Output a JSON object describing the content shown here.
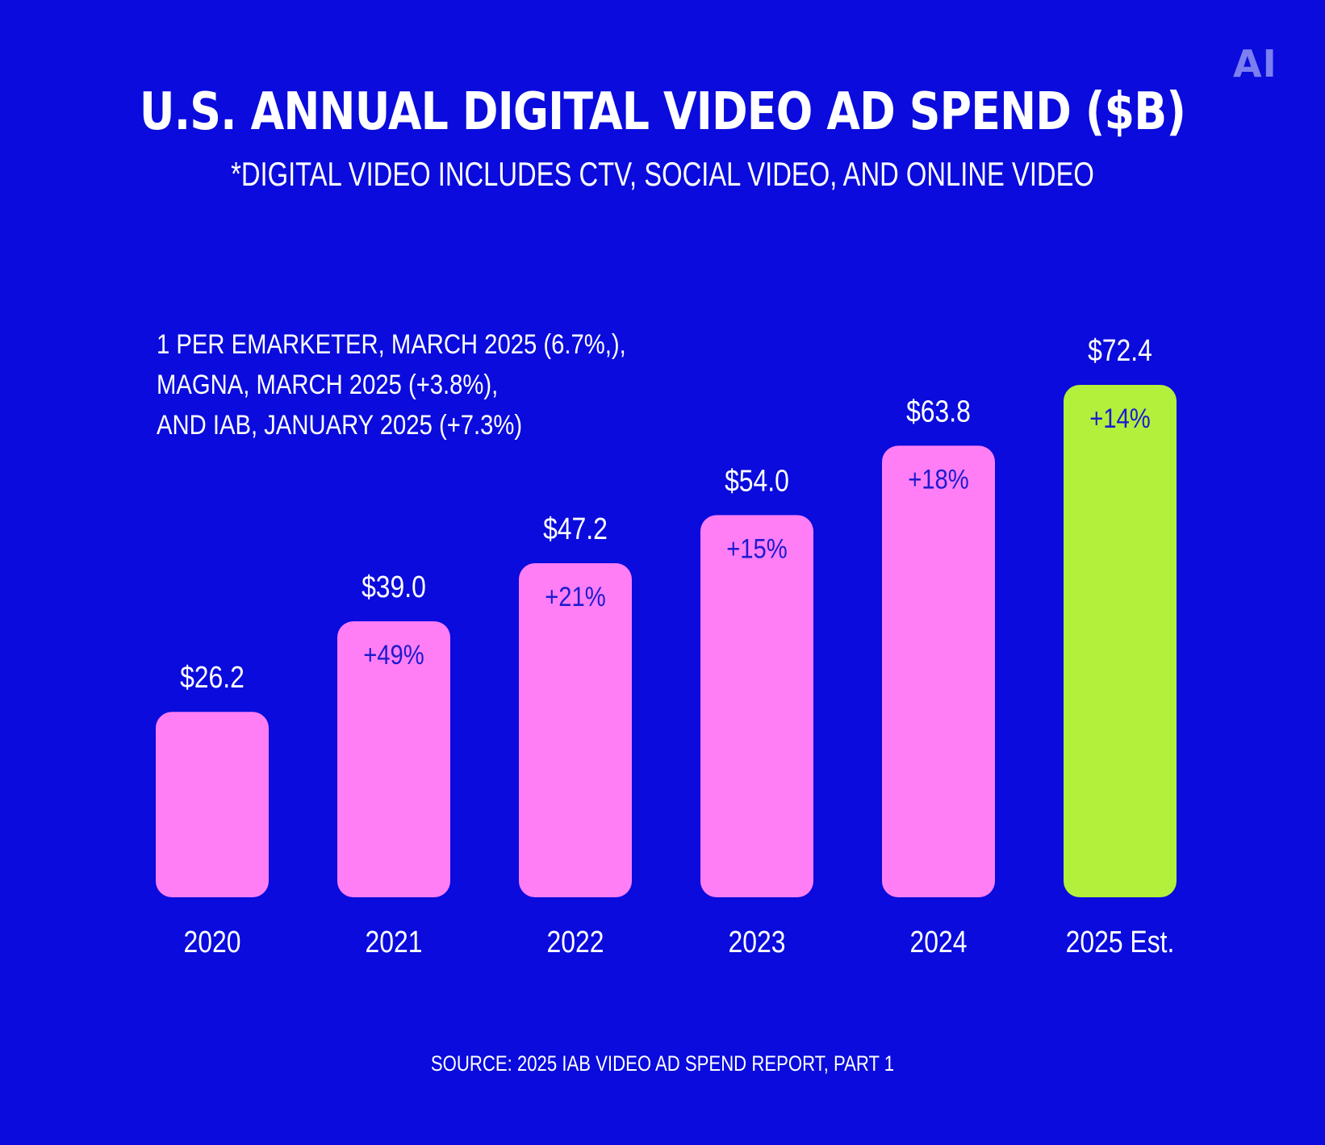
{
  "logo": {
    "text": "AI"
  },
  "header": {
    "title": "U.S. ANNUAL DIGITAL VIDEO AD SPEND ($B)",
    "subtitle": "*DIGITAL VIDEO INCLUDES CTV, SOCIAL VIDEO, AND ONLINE VIDEO"
  },
  "notes": {
    "lines": [
      "1 PER EMARKETER, MARCH 2025 (6.7%,),",
      "MAGNA, MARCH 2025 (+3.8%),",
      "AND IAB, JANUARY 2025 (+7.3%)"
    ]
  },
  "footer": {
    "source": "SOURCE: 2025 IAB VIDEO AD SPEND REPORT, PART 1"
  },
  "colors": {
    "background": "#0a0bdc",
    "bar_actual": "#ff7ef5",
    "bar_estimate": "#b2f03c",
    "growth_label": "#1d1bd0",
    "text": "#ffffff",
    "logo": "#7b7ff0"
  },
  "chart_data": {
    "type": "bar",
    "title": "U.S. ANNUAL DIGITAL VIDEO AD SPEND ($B)",
    "subtitle": "*DIGITAL VIDEO INCLUDES CTV, SOCIAL VIDEO, AND ONLINE VIDEO",
    "xlabel": "",
    "ylabel": "",
    "ylim": [
      0,
      72.4
    ],
    "grid": false,
    "legend": "none",
    "categories": [
      "2020",
      "2021",
      "2022",
      "2023",
      "2024",
      "2025 Est."
    ],
    "values": [
      26.2,
      39.0,
      47.2,
      54.0,
      63.8,
      72.4
    ],
    "value_labels": [
      "$26.2",
      "$39.0",
      "$47.2",
      "$54.0",
      "$63.8",
      "$72.4"
    ],
    "growth_labels": [
      "",
      "+49%",
      "+21%",
      "+15%",
      "+18%",
      "+14%"
    ],
    "estimate": [
      false,
      false,
      false,
      false,
      false,
      true
    ]
  }
}
